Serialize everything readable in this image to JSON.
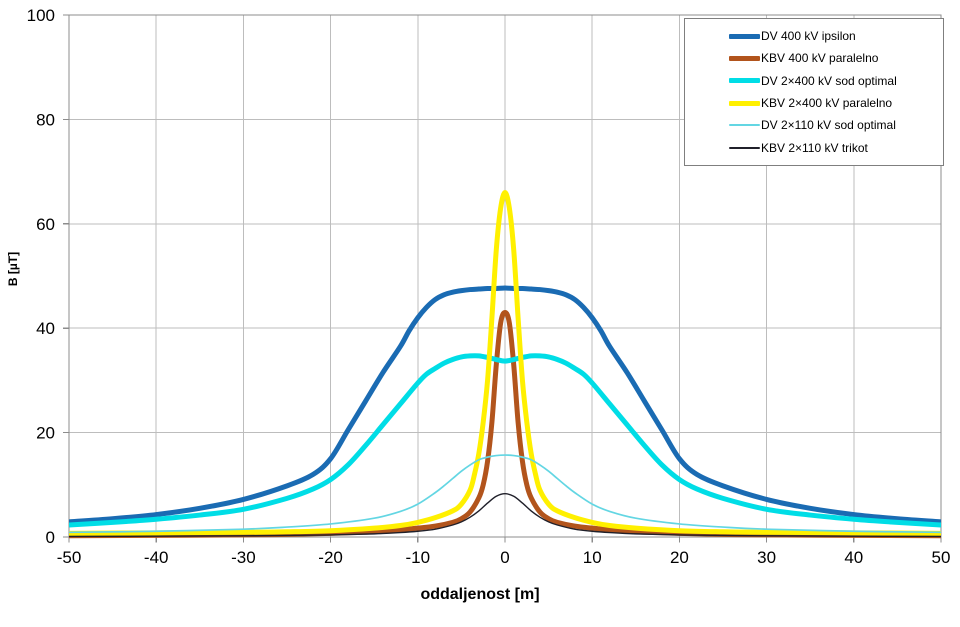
{
  "chart_data": {
    "type": "line",
    "title": "",
    "xlabel": "oddaljenost [m]",
    "ylabel": "B [µT]",
    "xlim": [
      -50,
      50
    ],
    "ylim": [
      0,
      100
    ],
    "xticks": [
      -50,
      -40,
      -30,
      -20,
      -10,
      0,
      10,
      20,
      30,
      40,
      50
    ],
    "yticks": [
      0,
      20,
      40,
      60,
      80,
      100
    ],
    "grid": true,
    "legend_position": "top-right",
    "frame_color": "#8c8c8c",
    "grid_color": "#bdbdbd",
    "tick_label_color": "#000000",
    "series": [
      {
        "name": "DV 400 kV ipsilon",
        "color": "#1a6bb3",
        "width": 5,
        "points": [
          [
            -50,
            2.9
          ],
          [
            -45,
            3.5
          ],
          [
            -40,
            4.3
          ],
          [
            -35,
            5.5
          ],
          [
            -30,
            7.2
          ],
          [
            -25,
            9.8
          ],
          [
            -22,
            12
          ],
          [
            -20,
            15
          ],
          [
            -18,
            20.5
          ],
          [
            -16,
            26
          ],
          [
            -14,
            31.5
          ],
          [
            -12,
            36.5
          ],
          [
            -11,
            39.5
          ],
          [
            -10,
            42
          ],
          [
            -9,
            44
          ],
          [
            -8,
            45.5
          ],
          [
            -7,
            46.4
          ],
          [
            -6,
            46.9
          ],
          [
            -5,
            47.2
          ],
          [
            -4,
            47.4
          ],
          [
            -3,
            47.5
          ],
          [
            -2,
            47.6
          ],
          [
            -1,
            47.6
          ],
          [
            0,
            47.7
          ],
          [
            1,
            47.6
          ],
          [
            2,
            47.6
          ],
          [
            3,
            47.5
          ],
          [
            4,
            47.4
          ],
          [
            5,
            47.2
          ],
          [
            6,
            46.9
          ],
          [
            7,
            46.4
          ],
          [
            8,
            45.5
          ],
          [
            9,
            44
          ],
          [
            10,
            42
          ],
          [
            11,
            39.5
          ],
          [
            12,
            36.5
          ],
          [
            14,
            31.5
          ],
          [
            16,
            26
          ],
          [
            18,
            20.5
          ],
          [
            20,
            15
          ],
          [
            22,
            12
          ],
          [
            25,
            9.8
          ],
          [
            30,
            7.2
          ],
          [
            35,
            5.5
          ],
          [
            40,
            4.3
          ],
          [
            45,
            3.5
          ],
          [
            50,
            2.9
          ]
        ]
      },
      {
        "name": "KBV 400 kV paralelno",
        "color": "#b2541c",
        "width": 5,
        "points": [
          [
            -50,
            0.25
          ],
          [
            -40,
            0.3
          ],
          [
            -30,
            0.4
          ],
          [
            -25,
            0.5
          ],
          [
            -20,
            0.7
          ],
          [
            -15,
            1.0
          ],
          [
            -12,
            1.4
          ],
          [
            -10,
            1.7
          ],
          [
            -8,
            2.1
          ],
          [
            -6,
            2.8
          ],
          [
            -5,
            3.5
          ],
          [
            -4,
            4.8
          ],
          [
            -3,
            7.5
          ],
          [
            -2.5,
            10
          ],
          [
            -2,
            14.5
          ],
          [
            -1.5,
            22
          ],
          [
            -1,
            33
          ],
          [
            -0.5,
            41
          ],
          [
            0,
            43
          ],
          [
            0.5,
            41
          ],
          [
            1,
            33
          ],
          [
            1.5,
            22
          ],
          [
            2,
            14.5
          ],
          [
            2.5,
            10
          ],
          [
            3,
            7.5
          ],
          [
            4,
            4.8
          ],
          [
            5,
            3.5
          ],
          [
            6,
            2.8
          ],
          [
            8,
            2.1
          ],
          [
            10,
            1.7
          ],
          [
            12,
            1.4
          ],
          [
            15,
            1.0
          ],
          [
            20,
            0.7
          ],
          [
            25,
            0.5
          ],
          [
            30,
            0.4
          ],
          [
            40,
            0.3
          ],
          [
            50,
            0.25
          ]
        ]
      },
      {
        "name": "DV 2×400 kV sod optimal",
        "color": "#00dde6",
        "width": 5,
        "points": [
          [
            -50,
            2.3
          ],
          [
            -45,
            2.8
          ],
          [
            -40,
            3.4
          ],
          [
            -35,
            4.2
          ],
          [
            -30,
            5.3
          ],
          [
            -25,
            7.4
          ],
          [
            -22,
            9.2
          ],
          [
            -20,
            11
          ],
          [
            -18,
            13.8
          ],
          [
            -16,
            17.5
          ],
          [
            -14,
            21.5
          ],
          [
            -12,
            25.5
          ],
          [
            -10,
            29.5
          ],
          [
            -9,
            31.2
          ],
          [
            -8,
            32.3
          ],
          [
            -7,
            33.3
          ],
          [
            -6,
            34
          ],
          [
            -5,
            34.5
          ],
          [
            -4,
            34.7
          ],
          [
            -3,
            34.7
          ],
          [
            -2,
            34.4
          ],
          [
            -1,
            34
          ],
          [
            0,
            33.7
          ],
          [
            1,
            34
          ],
          [
            2,
            34.4
          ],
          [
            3,
            34.7
          ],
          [
            4,
            34.7
          ],
          [
            5,
            34.5
          ],
          [
            6,
            34
          ],
          [
            7,
            33.3
          ],
          [
            8,
            32.3
          ],
          [
            9,
            31.2
          ],
          [
            10,
            29.5
          ],
          [
            12,
            25.5
          ],
          [
            14,
            21.5
          ],
          [
            16,
            17.5
          ],
          [
            18,
            13.8
          ],
          [
            20,
            11
          ],
          [
            22,
            9.2
          ],
          [
            25,
            7.4
          ],
          [
            30,
            5.3
          ],
          [
            35,
            4.2
          ],
          [
            40,
            3.4
          ],
          [
            45,
            2.8
          ],
          [
            50,
            2.3
          ]
        ]
      },
      {
        "name": "KBV 2×400 kV paralelno",
        "color": "#fff000",
        "width": 5,
        "points": [
          [
            -50,
            0.7
          ],
          [
            -40,
            0.8
          ],
          [
            -30,
            0.9
          ],
          [
            -25,
            1.0
          ],
          [
            -20,
            1.2
          ],
          [
            -15,
            1.7
          ],
          [
            -12,
            2.2
          ],
          [
            -10,
            2.8
          ],
          [
            -8,
            3.7
          ],
          [
            -6,
            5.0
          ],
          [
            -5,
            6.3
          ],
          [
            -4,
            9
          ],
          [
            -3.5,
            12
          ],
          [
            -3,
            16
          ],
          [
            -2.5,
            22
          ],
          [
            -2,
            30
          ],
          [
            -1.5,
            42
          ],
          [
            -1,
            55
          ],
          [
            -0.5,
            63
          ],
          [
            0,
            66
          ],
          [
            0.5,
            63
          ],
          [
            1,
            55
          ],
          [
            1.5,
            42
          ],
          [
            2,
            30
          ],
          [
            2.5,
            22
          ],
          [
            3,
            16
          ],
          [
            3.5,
            12
          ],
          [
            4,
            9
          ],
          [
            5,
            6.3
          ],
          [
            6,
            5.0
          ],
          [
            8,
            3.7
          ],
          [
            10,
            2.8
          ],
          [
            12,
            2.2
          ],
          [
            15,
            1.7
          ],
          [
            20,
            1.2
          ],
          [
            25,
            1.0
          ],
          [
            30,
            0.9
          ],
          [
            40,
            0.8
          ],
          [
            50,
            0.7
          ]
        ]
      },
      {
        "name": "DV 2×110 kV sod optimal",
        "color": "#63d6e3",
        "width": 1.7,
        "points": [
          [
            -50,
            0.9
          ],
          [
            -40,
            1.1
          ],
          [
            -30,
            1.5
          ],
          [
            -25,
            1.9
          ],
          [
            -20,
            2.5
          ],
          [
            -15,
            3.6
          ],
          [
            -12,
            4.9
          ],
          [
            -10,
            6.3
          ],
          [
            -8,
            8.5
          ],
          [
            -7,
            9.8
          ],
          [
            -6,
            11.2
          ],
          [
            -5,
            12.6
          ],
          [
            -4,
            13.8
          ],
          [
            -3,
            14.8
          ],
          [
            -2,
            15.3
          ],
          [
            -1,
            15.6
          ],
          [
            0,
            15.7
          ],
          [
            1,
            15.6
          ],
          [
            2,
            15.3
          ],
          [
            3,
            14.8
          ],
          [
            4,
            13.8
          ],
          [
            5,
            12.6
          ],
          [
            6,
            11.2
          ],
          [
            7,
            9.8
          ],
          [
            8,
            8.5
          ],
          [
            10,
            6.3
          ],
          [
            12,
            4.9
          ],
          [
            15,
            3.6
          ],
          [
            20,
            2.5
          ],
          [
            25,
            1.9
          ],
          [
            30,
            1.5
          ],
          [
            40,
            1.1
          ],
          [
            50,
            0.9
          ]
        ]
      },
      {
        "name": "KBV 2×110 kV trikot",
        "color": "#20202a",
        "width": 1.4,
        "points": [
          [
            -50,
            0.1
          ],
          [
            -40,
            0.15
          ],
          [
            -30,
            0.22
          ],
          [
            -25,
            0.3
          ],
          [
            -20,
            0.4
          ],
          [
            -15,
            0.6
          ],
          [
            -12,
            0.85
          ],
          [
            -10,
            1.1
          ],
          [
            -8,
            1.5
          ],
          [
            -6,
            2.3
          ],
          [
            -5,
            2.9
          ],
          [
            -4,
            3.8
          ],
          [
            -3,
            5.0
          ],
          [
            -2,
            6.5
          ],
          [
            -1,
            7.8
          ],
          [
            0,
            8.3
          ],
          [
            1,
            7.8
          ],
          [
            2,
            6.5
          ],
          [
            3,
            5.0
          ],
          [
            4,
            3.8
          ],
          [
            5,
            2.9
          ],
          [
            6,
            2.3
          ],
          [
            8,
            1.5
          ],
          [
            10,
            1.1
          ],
          [
            12,
            0.85
          ],
          [
            15,
            0.6
          ],
          [
            20,
            0.4
          ],
          [
            25,
            0.3
          ],
          [
            30,
            0.22
          ],
          [
            40,
            0.15
          ],
          [
            50,
            0.1
          ]
        ]
      }
    ]
  },
  "legend": {
    "items": [
      {
        "label": "DV 400 kV ipsilon"
      },
      {
        "label": "KBV 400 kV paralelno"
      },
      {
        "label": "DV 2×400 kV sod optimal"
      },
      {
        "label": "KBV 2×400 kV paralelno"
      },
      {
        "label": "DV 2×110 kV sod optimal"
      },
      {
        "label": "KBV 2×110 kV trikot"
      }
    ]
  }
}
